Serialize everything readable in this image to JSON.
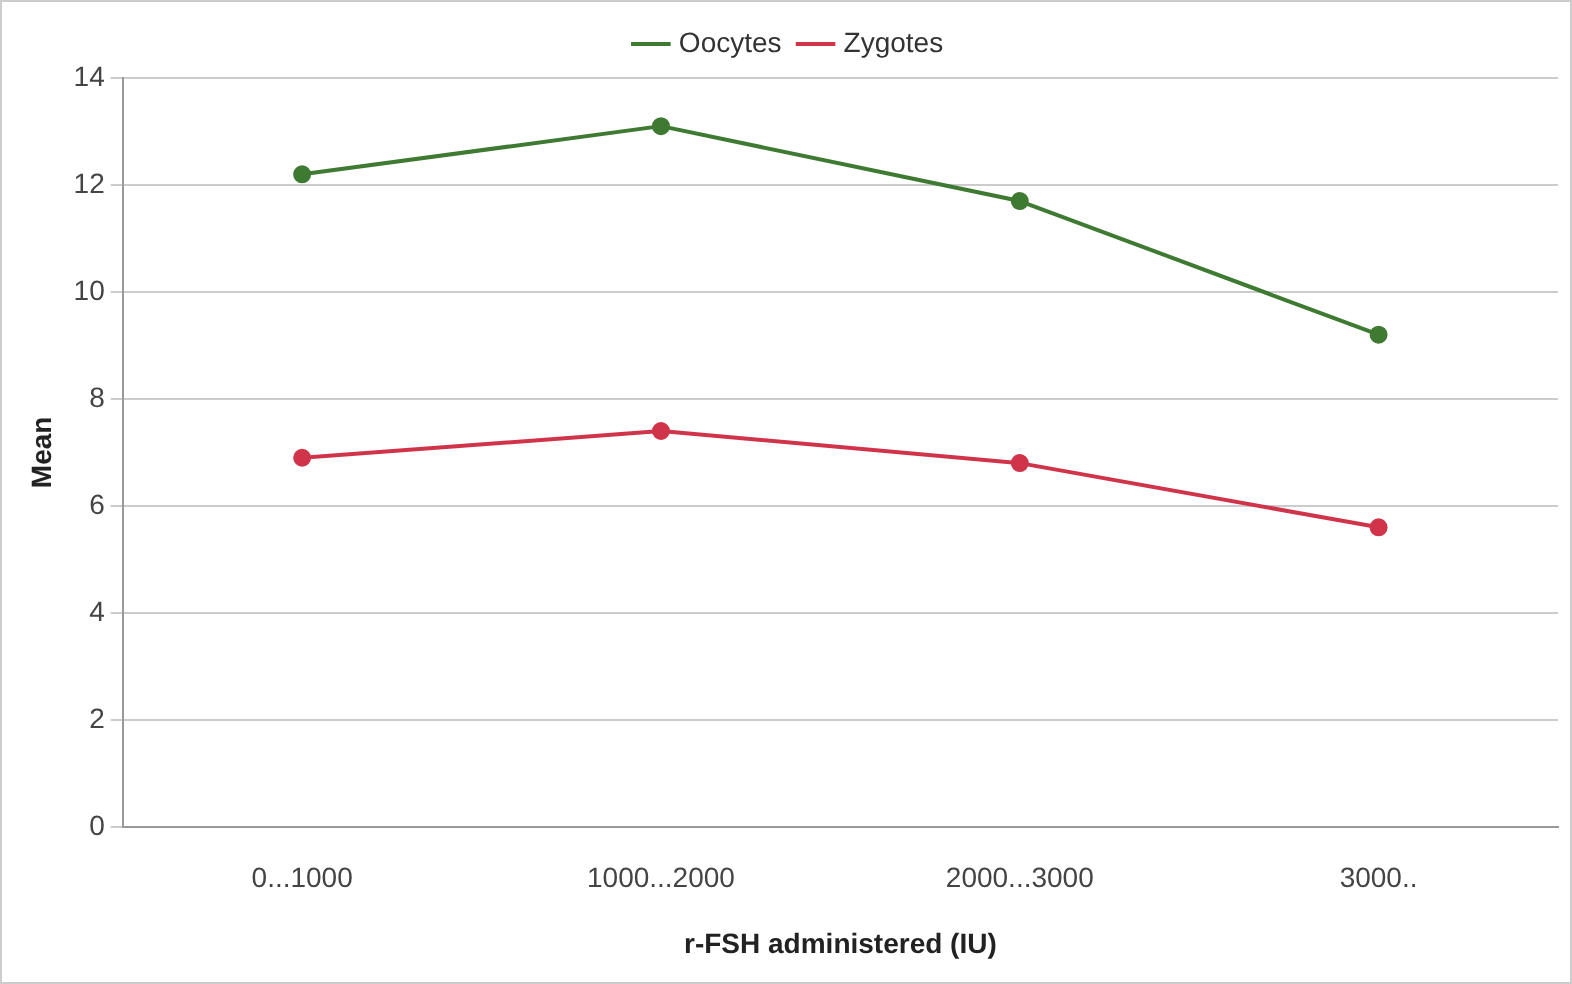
{
  "chart_data": {
    "type": "line",
    "xlabel": "r-FSH administered (IU)",
    "ylabel": "Mean",
    "categories": [
      "0...1000",
      "1000...2000",
      "2000...3000",
      "3000.."
    ],
    "series": [
      {
        "name": "Oocytes",
        "color": "#3e7a32",
        "values": [
          12.2,
          13.1,
          11.7,
          9.2
        ]
      },
      {
        "name": "Zygotes",
        "color": "#d0344a",
        "values": [
          6.9,
          7.4,
          6.8,
          5.6
        ]
      }
    ],
    "ylim": [
      0,
      14
    ],
    "yticks": [
      0,
      2,
      4,
      6,
      8,
      10,
      12,
      14
    ],
    "grid": "y",
    "legend": "top",
    "marker": "circle",
    "line_style": "solid"
  }
}
